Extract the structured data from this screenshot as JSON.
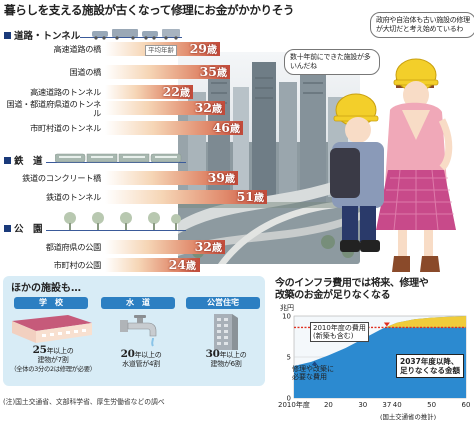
{
  "title": "暮らしを支える施設が古くなって修理にお金がかかりそう",
  "speech": {
    "boy": "数十年前にできた施設が多いんだね",
    "girl": "政府や自治体も古い施設の修理が大切だと考え始めているわ"
  },
  "sections": [
    {
      "name": "道路・トンネル",
      "rows": [
        {
          "label": "高速道路の橋",
          "age": 29,
          "tag": "平均年齢"
        },
        {
          "label": "国道の橋",
          "age": 35
        },
        {
          "label": "高速道路のトンネル",
          "age": 22
        },
        {
          "label": "国道・都道府県道のトンネル",
          "age": 32
        },
        {
          "label": "市町村道のトンネル",
          "age": 46
        }
      ]
    },
    {
      "name": "鉄　道",
      "rows": [
        {
          "label": "鉄道のコンクリート橋",
          "age": 39
        },
        {
          "label": "鉄道のトンネル",
          "age": 51
        }
      ]
    },
    {
      "name": "公　園",
      "rows": [
        {
          "label": "都道府県の公園",
          "age": 32
        },
        {
          "label": "市町村の公園",
          "age": 24
        }
      ]
    }
  ],
  "age_unit": "歳",
  "others": {
    "title": "ほかの施設も…",
    "items": [
      {
        "name": "学　校",
        "years": "25",
        "line1": "年以上の",
        "line2": "建物が7割",
        "line3": "（全体の3分の2は修理が必要）"
      },
      {
        "name": "水　道",
        "years": "20",
        "line1": "年以上の",
        "line2": "水道管が4割",
        "line3": ""
      },
      {
        "name": "公営住宅",
        "years": "30",
        "line1": "年以上の",
        "line2": "建物が6割",
        "line3": ""
      }
    ],
    "note": "(注)国土交通省、文部科学省、厚生労働省などの調べ"
  },
  "chart": {
    "title_line1": "今のインフラ費用では将来、修理や",
    "title_line2": "改築のお金が足りなくなる",
    "unit": "兆円",
    "callout_cost_1": "2010年度の費用",
    "callout_cost_2": "(新築も含む)",
    "callout_need_1": "修理や改築に",
    "callout_need_2": "必要な費用",
    "callout_short_1": "2037年度以降、",
    "callout_short_2": "足りなくなる金額",
    "source": "(国土交通省の推計)",
    "y_ticks": [
      "10",
      "5",
      "0"
    ],
    "x_ticks": [
      "2010年度",
      "20",
      "30",
      "37",
      "40",
      "50",
      "60"
    ],
    "marker_year": "37"
  },
  "chart_data": {
    "type": "area",
    "x": [
      2010,
      2015,
      2020,
      2025,
      2030,
      2035,
      2037,
      2040,
      2045,
      2050,
      2055,
      2060
    ],
    "series": [
      {
        "name": "修理や改築に必要な費用",
        "values": [
          3.9,
          4.4,
          5.2,
          6.1,
          7.2,
          8.3,
          8.7,
          9.2,
          9.6,
          9.8,
          9.9,
          10.0
        ]
      }
    ],
    "reference": {
      "name": "2010年度の費用",
      "value": 8.6
    },
    "ylabel": "兆円",
    "ylim": [
      0,
      10
    ],
    "xlim": [
      2010,
      2060
    ]
  },
  "colors": {
    "bar_end": "#c24a3a",
    "navy": "#1a3a7a",
    "chart_fill": "#2c8ad0",
    "shortfall": "#f0cc3a",
    "ref_line": "#e03020",
    "panel": "#d8ecf6"
  }
}
